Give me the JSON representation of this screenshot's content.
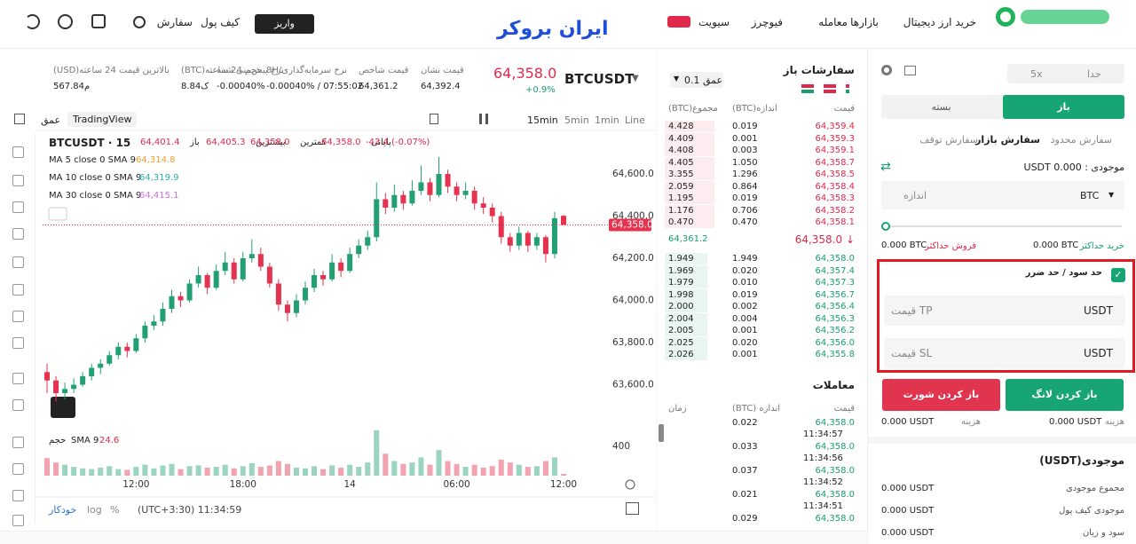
{
  "nav": {
    "items": [
      "خرید ارز دیجیتال",
      "بازارها",
      "معامله",
      "فیوچرز",
      "سیویت"
    ],
    "deposit": "واریز",
    "wallet": "کیف پول",
    "orders": "سفارش"
  },
  "watermark": "ایران بروکر",
  "ticker": {
    "symbol": "BTCUSDT",
    "price": "64,358.0",
    "change": "+0.9%",
    "stats": [
      {
        "label": "قیمت نشان",
        "value": "64,392.4"
      },
      {
        "label": "قیمت شاخص",
        "value": "64,361.2"
      },
      {
        "label": "نرخ سرمایه‌گذاری/8H",
        "value": "-0.00040% / 07:55:02"
      },
      {
        "label": "نرخ پیش‌بینی شده",
        "value": "-0.00040%"
      },
      {
        "label": "حجم 24 ساعته(BTC)",
        "value": "8.84ک"
      },
      {
        "label": "بالاترین قیمت 24 ساعته(USD)",
        "value": "567.84م"
      }
    ]
  },
  "chart_toolbar": {
    "intervals": [
      "Line",
      "1min",
      "5min",
      "15min"
    ],
    "tradingview": "TradingView",
    "depth": "عمق"
  },
  "chart_legend": {
    "symbol": "BTCUSDT · 15",
    "open": "باز",
    "open_value": "64,401.4",
    "high": "بیشترین",
    "high_value": "64,405.3",
    "low": "کمترین",
    "low_value": "64,358.0",
    "close": "پایانی",
    "close_value": "64,358.0",
    "change": "-43.4 (-0.07%)",
    "ma": [
      {
        "name": "MA 5 close 0 SMA 9",
        "value": "64,314.8",
        "color": "#f0a030"
      },
      {
        "name": "MA 10 close 0 SMA 9",
        "value": "64,319.9",
        "color": "#2ab0a8"
      },
      {
        "name": "MA 30 close 0 SMA 9",
        "value": "64,415.1",
        "color": "#d070e0"
      }
    ],
    "volume": "حجم",
    "volume_sma": "SMA 9",
    "volume_value": "24.6"
  },
  "chart_data": {
    "type": "candlestick",
    "categories": [
      null,
      null,
      null,
      null,
      null,
      null,
      null,
      null,
      null,
      null,
      "12:00",
      null,
      null,
      null,
      null,
      null,
      null,
      null,
      null,
      null,
      null,
      null,
      "18:00",
      null,
      null,
      null,
      null,
      null,
      null,
      null,
      null,
      null,
      null,
      null,
      "14",
      null,
      null,
      null,
      null,
      null,
      null,
      null,
      null,
      null,
      null,
      null,
      "06:00",
      null,
      null,
      null,
      null,
      null,
      null,
      null,
      null,
      null,
      null,
      null,
      "12:00"
    ],
    "ohlc": [
      [
        63660,
        63700,
        63560,
        63620
      ],
      [
        63620,
        63640,
        63520,
        63560
      ],
      [
        63560,
        63610,
        63530,
        63580
      ],
      [
        63580,
        63630,
        63560,
        63600
      ],
      [
        63600,
        63660,
        63590,
        63640
      ],
      [
        63640,
        63700,
        63620,
        63680
      ],
      [
        63680,
        63720,
        63650,
        63700
      ],
      [
        63700,
        63760,
        63690,
        63740
      ],
      [
        63740,
        63800,
        63720,
        63780
      ],
      [
        63780,
        63800,
        63730,
        63760
      ],
      [
        63760,
        63840,
        63750,
        63820
      ],
      [
        63820,
        63900,
        63800,
        63880
      ],
      [
        63880,
        63930,
        63860,
        63900
      ],
      [
        63900,
        63990,
        63880,
        63960
      ],
      [
        63960,
        64050,
        63940,
        64020
      ],
      [
        64020,
        64040,
        63970,
        64000
      ],
      [
        64000,
        64100,
        63990,
        64080
      ],
      [
        64080,
        64160,
        64060,
        64120
      ],
      [
        64120,
        64130,
        64030,
        64060
      ],
      [
        64060,
        64170,
        64050,
        64140
      ],
      [
        64140,
        64230,
        64120,
        64180
      ],
      [
        64180,
        64200,
        64080,
        64100
      ],
      [
        64100,
        64230,
        64090,
        64200
      ],
      [
        64200,
        64290,
        64180,
        64220
      ],
      [
        64220,
        64250,
        64140,
        64160
      ],
      [
        64160,
        64180,
        64060,
        64080
      ],
      [
        64080,
        64100,
        63950,
        63980
      ],
      [
        63980,
        64000,
        63900,
        63940
      ],
      [
        63940,
        64030,
        63920,
        64000
      ],
      [
        64000,
        64090,
        63980,
        64060
      ],
      [
        64060,
        64150,
        64040,
        64120
      ],
      [
        64120,
        64140,
        64070,
        64100
      ],
      [
        64100,
        64220,
        64090,
        64180
      ],
      [
        64180,
        64200,
        64110,
        64140
      ],
      [
        64140,
        64250,
        64130,
        64220
      ],
      [
        64220,
        64290,
        64200,
        64260
      ],
      [
        64260,
        64330,
        64240,
        64300
      ],
      [
        64300,
        64560,
        64280,
        64480
      ],
      [
        64480,
        64510,
        64410,
        64440
      ],
      [
        64440,
        64550,
        64420,
        64500
      ],
      [
        64500,
        64520,
        64430,
        64460
      ],
      [
        64460,
        64570,
        64450,
        64520
      ],
      [
        64520,
        64640,
        64500,
        64560
      ],
      [
        64560,
        64580,
        64470,
        64500
      ],
      [
        64500,
        64680,
        64490,
        64600
      ],
      [
        64600,
        64620,
        64510,
        64540
      ],
      [
        64540,
        64560,
        64470,
        64500
      ],
      [
        64500,
        64560,
        64480,
        64520
      ],
      [
        64520,
        64540,
        64430,
        64460
      ],
      [
        64460,
        64490,
        64410,
        64440
      ],
      [
        64440,
        64460,
        64370,
        64400
      ],
      [
        64400,
        64420,
        64270,
        64300
      ],
      [
        64300,
        64320,
        64230,
        64260
      ],
      [
        64260,
        64350,
        64240,
        64320
      ],
      [
        64320,
        64330,
        64230,
        64260
      ],
      [
        64260,
        64320,
        64240,
        64300
      ],
      [
        64300,
        64310,
        64180,
        64220
      ],
      [
        64220,
        64420,
        64200,
        64390
      ],
      [
        64401.4,
        64405.3,
        64358.0,
        64358.0
      ]
    ],
    "volume": [
      240,
      180,
      150,
      120,
      100,
      90,
      110,
      130,
      90,
      80,
      120,
      150,
      100,
      140,
      160,
      90,
      130,
      140,
      110,
      120,
      150,
      100,
      130,
      170,
      120,
      140,
      200,
      160,
      110,
      100,
      130,
      90,
      140,
      110,
      150,
      120,
      180,
      620,
      300,
      200,
      160,
      180,
      250,
      150,
      350,
      200,
      160,
      120,
      150,
      110,
      130,
      220,
      180,
      150,
      120,
      130,
      200,
      250,
      25
    ],
    "ylim": [
      63440,
      64800
    ],
    "yticks": [
      {
        "value": 63600,
        "label": "63,600.0"
      },
      {
        "value": 63800,
        "label": "63,800.0"
      },
      {
        "value": 64000,
        "label": "64,000.0"
      },
      {
        "value": 64200,
        "label": "64,200.0"
      },
      {
        "value": 64400,
        "label": "64,400.0"
      },
      {
        "value": 64600,
        "label": "64,600.0"
      }
    ],
    "vlim": [
      0,
      400
    ],
    "vticks": [
      400
    ],
    "last_price": {
      "value": 64358.0,
      "label": "64,358.0"
    },
    "up_color": "#22a074",
    "down_color": "#e5334f",
    "grid": false
  },
  "chart_footer": {
    "timezone": "(UTC+3:30) 11:34:59",
    "percent": "%",
    "log": "log",
    "auto": "خودکار"
  },
  "order_book": {
    "title": "سفارشات باز",
    "depth": "عمق 0.1",
    "headers": [
      "قیمت",
      "اندازه(BTC)",
      "مجموع(BTC)"
    ],
    "asks": [
      [
        "64,359.4",
        "0.019",
        "4.428"
      ],
      [
        "64,359.3",
        "0.001",
        "4.409"
      ],
      [
        "64,359.1",
        "0.003",
        "4.408"
      ],
      [
        "64,358.7",
        "1.050",
        "4.405"
      ],
      [
        "64,358.5",
        "1.296",
        "3.355"
      ],
      [
        "64,358.4",
        "0.864",
        "2.059"
      ],
      [
        "64,358.3",
        "0.019",
        "1.195"
      ],
      [
        "64,358.2",
        "0.706",
        "1.176"
      ],
      [
        "64,358.1",
        "0.470",
        "0.470"
      ]
    ],
    "last": "64,358.0 ↓",
    "mark": "64,361.2",
    "bids": [
      [
        "64,358.0",
        "1.949",
        "1.949"
      ],
      [
        "64,357.4",
        "0.020",
        "1.969"
      ],
      [
        "64,357.3",
        "0.010",
        "1.979"
      ],
      [
        "64,356.7",
        "0.019",
        "1.998"
      ],
      [
        "64,356.4",
        "0.002",
        "2.000"
      ],
      [
        "64,356.3",
        "0.004",
        "2.004"
      ],
      [
        "64,356.2",
        "0.001",
        "2.005"
      ],
      [
        "64,356.0",
        "0.020",
        "2.025"
      ],
      [
        "64,355.8",
        "0.001",
        "2.026"
      ]
    ]
  },
  "trades": {
    "title": "معاملات",
    "headers": [
      "قیمت",
      "اندازه (BTC)",
      "زمان"
    ],
    "rows": [
      [
        "64,358.0",
        "0.022",
        "11:34:57"
      ],
      [
        "64,358.0",
        "0.033",
        "11:34:56"
      ],
      [
        "64,358.0",
        "0.037",
        "11:34:52"
      ],
      [
        "64,358.0",
        "0.021",
        "11:34:51"
      ],
      [
        "64,358.0",
        "0.029"
      ]
    ]
  },
  "order_form": {
    "margin_mode": "جدا",
    "leverage": "5x",
    "tabs": [
      "باز",
      "بسته"
    ],
    "order_types": [
      "سفارش محدود",
      "سفارش بازار",
      "سفارش توقف"
    ],
    "balance": "موجودی : USDT 0.000",
    "size": "اندازه",
    "size_unit": "BTC",
    "max_buy_label": "خرید حداکثر",
    "max_buy": "0.000 BTC",
    "max_sell_label": "فروش حداکثر",
    "max_sell": "0.000 BTC",
    "tpsl": "حد سود / حد ضرر",
    "tp": "TP قیمت",
    "sl": "SL قیمت",
    "unit": "USDT",
    "long": "باز کردن لانگ",
    "short": "باز کردن شورت",
    "cost_label": "هزینه",
    "cost_long": "0.000 USDT",
    "cost_short": "0.000 USDT",
    "assets_title": "موجودی(USDT)",
    "assets": [
      [
        "مجموع موجودی",
        "0.000 USDT"
      ],
      [
        "موجودی کیف پول",
        "0.000 USDT"
      ],
      [
        "سود و زیان",
        "0.000 USDT"
      ]
    ]
  }
}
